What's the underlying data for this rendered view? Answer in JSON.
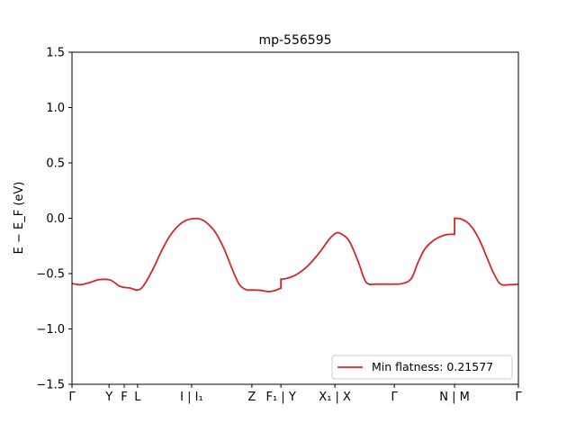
{
  "chart_data": {
    "type": "line",
    "title": "mp-556595",
    "ylabel": "E − E_F (eV)",
    "ylim": [
      -1.5,
      1.5
    ],
    "yticks": [
      {
        "value": -1.5,
        "label": "−1.5"
      },
      {
        "value": -1.0,
        "label": "−1.0"
      },
      {
        "value": -0.5,
        "label": "−0.5"
      },
      {
        "value": 0.0,
        "label": "0.0"
      },
      {
        "value": 0.5,
        "label": "0.5"
      },
      {
        "value": 1.0,
        "label": "1.0"
      },
      {
        "value": 1.5,
        "label": "1.5"
      }
    ],
    "xlim": [
      0,
      1
    ],
    "xticks": [
      {
        "value": 0.0,
        "label": "Γ"
      },
      {
        "value": 0.083,
        "label": "Y"
      },
      {
        "value": 0.117,
        "label": "F"
      },
      {
        "value": 0.147,
        "label": "L"
      },
      {
        "value": 0.268,
        "label": "I | I₁"
      },
      {
        "value": 0.403,
        "label": "Z"
      },
      {
        "value": 0.468,
        "label": "F₁ | Y"
      },
      {
        "value": 0.589,
        "label": "X₁ | X"
      },
      {
        "value": 0.722,
        "label": "Γ"
      },
      {
        "value": 0.857,
        "label": "N | M"
      },
      {
        "value": 1.0,
        "label": "Γ"
      }
    ],
    "legend": {
      "placement": "lower-right",
      "entries": [
        "Min flatness: 0.21577"
      ]
    },
    "grid": false,
    "series": [
      {
        "name": "Min flatness: 0.21577",
        "color": "#d62728",
        "x": [
          0.0,
          0.02,
          0.04,
          0.06,
          0.083,
          0.095,
          0.105,
          0.117,
          0.13,
          0.147,
          0.16,
          0.18,
          0.2,
          0.22,
          0.24,
          0.255,
          0.268,
          0.285,
          0.3,
          0.32,
          0.34,
          0.36,
          0.375,
          0.39,
          0.403,
          0.42,
          0.44,
          0.455,
          0.468,
          0.468,
          0.48,
          0.5,
          0.52,
          0.54,
          0.56,
          0.575,
          0.589,
          0.6,
          0.62,
          0.64,
          0.655,
          0.665,
          0.68,
          0.7,
          0.722,
          0.74,
          0.76,
          0.775,
          0.79,
          0.81,
          0.83,
          0.845,
          0.857,
          0.857,
          0.87,
          0.885,
          0.9,
          0.915,
          0.93,
          0.945,
          0.96,
          0.98,
          1.0
        ],
        "y": [
          -0.59,
          -0.6,
          -0.58,
          -0.555,
          -0.555,
          -0.58,
          -0.61,
          -0.625,
          -0.63,
          -0.648,
          -0.61,
          -0.47,
          -0.3,
          -0.155,
          -0.06,
          -0.02,
          -0.005,
          -0.005,
          -0.035,
          -0.12,
          -0.27,
          -0.47,
          -0.6,
          -0.645,
          -0.648,
          -0.65,
          -0.662,
          -0.652,
          -0.63,
          -0.55,
          -0.545,
          -0.515,
          -0.46,
          -0.38,
          -0.28,
          -0.195,
          -0.14,
          -0.135,
          -0.2,
          -0.38,
          -0.55,
          -0.595,
          -0.595,
          -0.595,
          -0.595,
          -0.59,
          -0.545,
          -0.4,
          -0.28,
          -0.2,
          -0.158,
          -0.145,
          -0.145,
          0.0,
          -0.005,
          -0.035,
          -0.105,
          -0.215,
          -0.36,
          -0.5,
          -0.595,
          -0.6,
          -0.595
        ]
      }
    ]
  }
}
